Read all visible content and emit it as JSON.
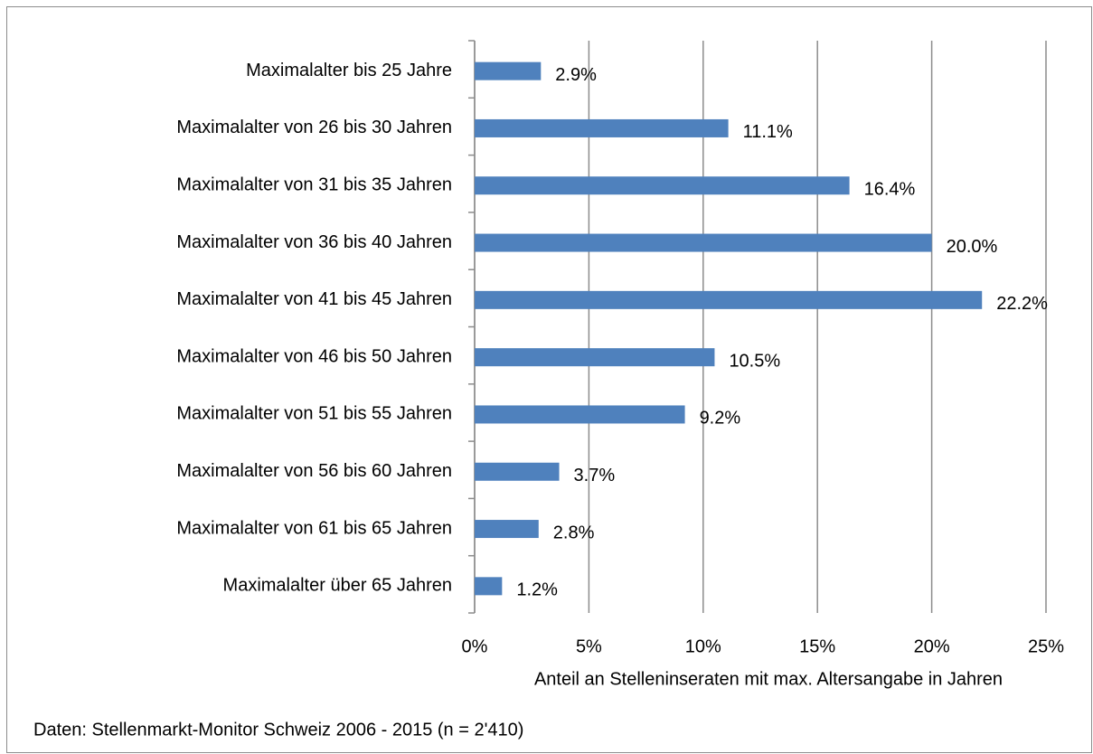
{
  "chart_data": {
    "type": "barh",
    "categories": [
      "Maximalalter bis 25 Jahre",
      "Maximalalter von 26 bis 30 Jahren",
      "Maximalalter von 31 bis 35 Jahren",
      "Maximalalter von 36 bis 40 Jahren",
      "Maximalalter von 41 bis 45 Jahren",
      "Maximalalter von 46 bis 50 Jahren",
      "Maximalalter von 51 bis 55 Jahren",
      "Maximalalter von 56 bis 60 Jahren",
      "Maximalalter von 61 bis 65 Jahren",
      "Maximalalter über 65 Jahren"
    ],
    "values": [
      2.9,
      11.1,
      16.4,
      20.0,
      22.2,
      10.5,
      9.2,
      3.7,
      2.8,
      1.2
    ],
    "value_labels": [
      "2.9%",
      "11.1%",
      "16.4%",
      "20.0%",
      "22.2%",
      "10.5%",
      "9.2%",
      "3.7%",
      "2.8%",
      "1.2%"
    ],
    "color": "#4f81bd",
    "xlim": [
      0,
      25
    ],
    "xticks": [
      {
        "value": 0,
        "label": "0%"
      },
      {
        "value": 5,
        "label": "5%"
      },
      {
        "value": 10,
        "label": "10%"
      },
      {
        "value": 15,
        "label": "15%"
      },
      {
        "value": 20,
        "label": "20%"
      },
      {
        "value": 25,
        "label": "25%"
      }
    ],
    "grid": true,
    "xlabel": "Anteil an Stelleninseraten mit max. Altersangabe in Jahren",
    "note": "Daten: Stellenmarkt-Monitor Schweiz 2006 - 2015 (n = 2'410)"
  }
}
